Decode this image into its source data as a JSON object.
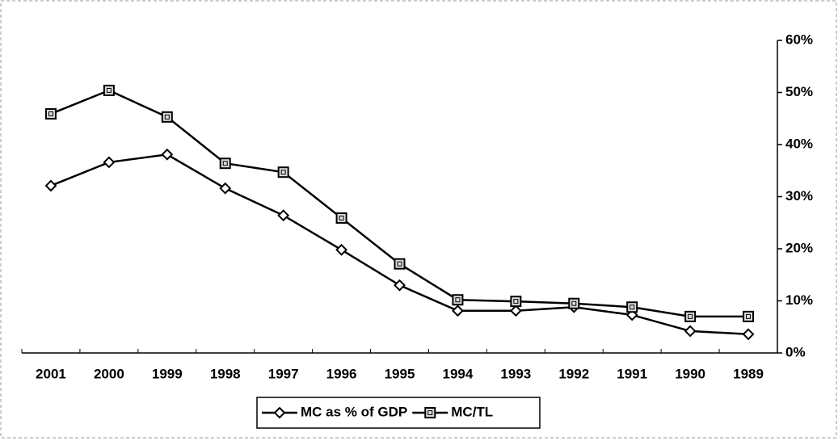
{
  "chart_data": {
    "type": "line",
    "categories": [
      "2001",
      "2000",
      "1999",
      "1998",
      "1997",
      "1996",
      "1995",
      "1994",
      "1993",
      "1992",
      "1991",
      "1990",
      "1989"
    ],
    "series": [
      {
        "name": "MC as % of GDP",
        "color": "#000000",
        "marker": "diamond",
        "values": [
          32.1,
          36.6,
          38.1,
          31.6,
          26.4,
          19.8,
          13.0,
          8.1,
          8.1,
          8.8,
          7.3,
          4.2,
          3.6
        ]
      },
      {
        "name": "MC/TL",
        "color": "#000000",
        "marker": "square",
        "values": [
          45.9,
          50.4,
          45.3,
          36.4,
          34.7,
          25.9,
          17.1,
          10.2,
          9.9,
          9.5,
          8.8,
          7.0,
          7.0
        ]
      }
    ],
    "ylim": [
      0,
      60
    ],
    "yticks": [
      {
        "value": 0,
        "label": "0%"
      },
      {
        "value": 10,
        "label": "10%"
      },
      {
        "value": 20,
        "label": "20%"
      },
      {
        "value": 30,
        "label": "30%"
      },
      {
        "value": 40,
        "label": "40%"
      },
      {
        "value": 50,
        "label": "50%"
      },
      {
        "value": 60,
        "label": "60%"
      }
    ],
    "legend": "bottom"
  }
}
